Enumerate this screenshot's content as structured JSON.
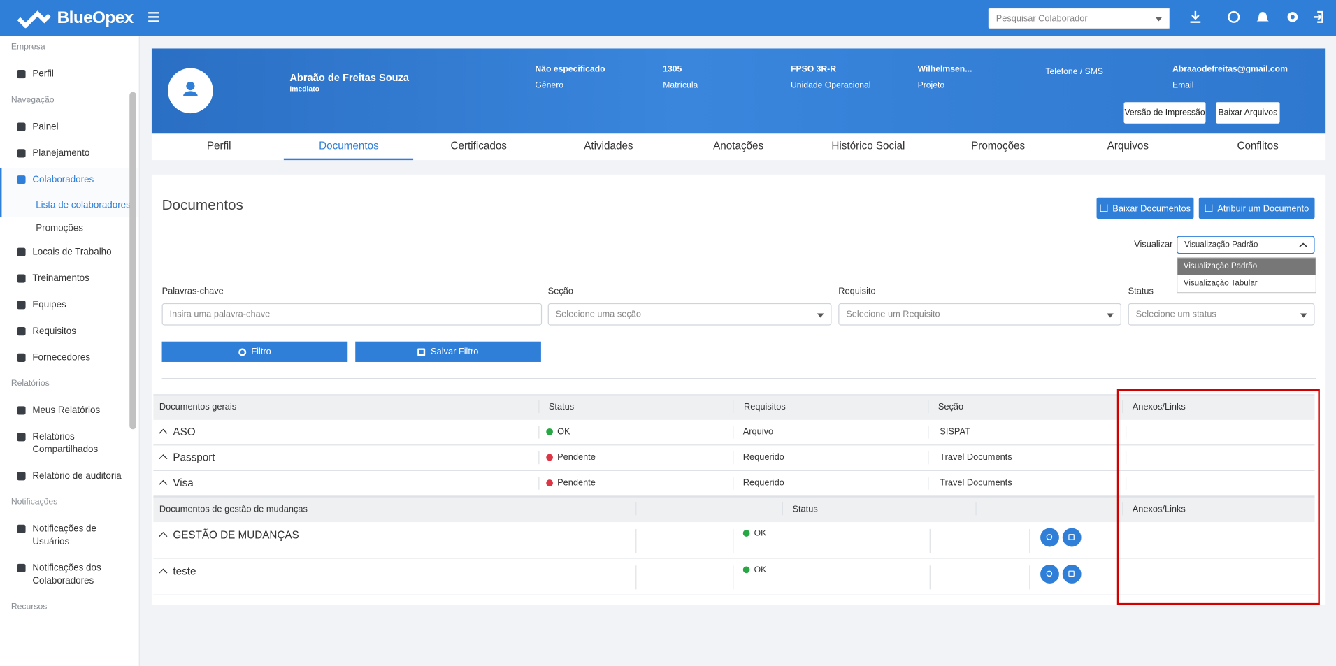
{
  "header": {
    "brand": "BlueOpex",
    "search_placeholder": "Pesquisar Colaborador"
  },
  "sidebar": [
    {
      "title": "Empresa",
      "items": [
        {
          "label": "Perfil"
        }
      ]
    },
    {
      "title": "Navegação",
      "items": [
        {
          "label": "Painel"
        },
        {
          "label": "Planejamento"
        },
        {
          "label": "Colaboradores",
          "active": true,
          "children": [
            {
              "label": "Lista de colaboradores",
              "active": true
            },
            {
              "label": "Promoções"
            }
          ]
        },
        {
          "label": "Locais de Trabalho"
        },
        {
          "label": "Treinamentos"
        },
        {
          "label": "Equipes"
        },
        {
          "label": "Requisitos"
        },
        {
          "label": "Fornecedores"
        }
      ]
    },
    {
      "title": "Relatórios",
      "items": [
        {
          "label": "Meus Relatórios"
        },
        {
          "label": "Relatórios Compartilhados"
        },
        {
          "label": "Relatório de auditoria"
        }
      ]
    },
    {
      "title": "Notificações",
      "items": [
        {
          "label": "Notificações de Usuários"
        },
        {
          "label": "Notificações dos Colaboradores"
        }
      ]
    },
    {
      "title": "Recursos",
      "items": []
    }
  ],
  "profile": {
    "name": "Abraão de Freitas Souza",
    "role": "Imediato",
    "fields": [
      {
        "value": "Não especificado",
        "label": "Gênero"
      },
      {
        "value": "1305",
        "label": "Matrícula"
      },
      {
        "value": "FPSO 3R-R",
        "label": "Unidade Operacional"
      },
      {
        "value": "Wilhelmsen...",
        "label": "Projeto"
      },
      {
        "label": "Telefone / SMS"
      },
      {
        "value": "Abraaodefreitas@gmail.com",
        "label": "Email"
      }
    ],
    "buttons": [
      "Versão de Impressão",
      "Baixar Arquivos"
    ]
  },
  "tabs": {
    "items": [
      "Perfil",
      "Documentos",
      "Certificados",
      "Atividades",
      "Anotações",
      "Histórico Social",
      "Promoções",
      "Arquivos",
      "Conflitos"
    ],
    "active": 1
  },
  "documents": {
    "title": "Documentos",
    "buttons": [
      "Baixar Documentos",
      "Atribuir um Documento"
    ],
    "view": {
      "label": "Visualizar",
      "selected": "Visualização Padrão",
      "options": [
        "Visualização Padrão",
        "Visualização Tabular"
      ]
    },
    "filters": [
      {
        "label": "Palavras-chave",
        "placeholder": "Insira uma palavra-chave",
        "dropdown": false
      },
      {
        "label": "Seção",
        "placeholder": "Selecione uma seção",
        "dropdown": true
      },
      {
        "label": "Requisito",
        "placeholder": "Selecione um Requisito",
        "dropdown": true
      },
      {
        "label": "Status",
        "placeholder": "Selecione um status",
        "dropdown": true
      }
    ],
    "filter_buttons": [
      "Filtro",
      "Salvar Filtro"
    ],
    "general": {
      "columns": [
        "Documentos gerais",
        "Status",
        "Requisitos",
        "Seção",
        "Anexos/Links"
      ],
      "rows": [
        {
          "name": "ASO",
          "status": "OK",
          "status_color": "#28a745",
          "requirement": "Arquivo",
          "section": "SISPAT"
        },
        {
          "name": "Passport",
          "status": "Pendente",
          "status_color": "#dc3545",
          "requirement": "Requerido",
          "section": "Travel Documents"
        },
        {
          "name": "Visa",
          "status": "Pendente",
          "status_color": "#dc3545",
          "requirement": "Requerido",
          "section": "Travel Documents"
        }
      ]
    },
    "change": {
      "columns": [
        "Documentos de gestão de mudanças",
        "Status",
        "Anexos/Links"
      ],
      "rows": [
        {
          "name": "GESTÃO DE MUDANÇAS",
          "status": "OK",
          "status_color": "#28a745"
        },
        {
          "name": "teste",
          "status": "OK",
          "status_color": "#28a745"
        }
      ]
    }
  }
}
